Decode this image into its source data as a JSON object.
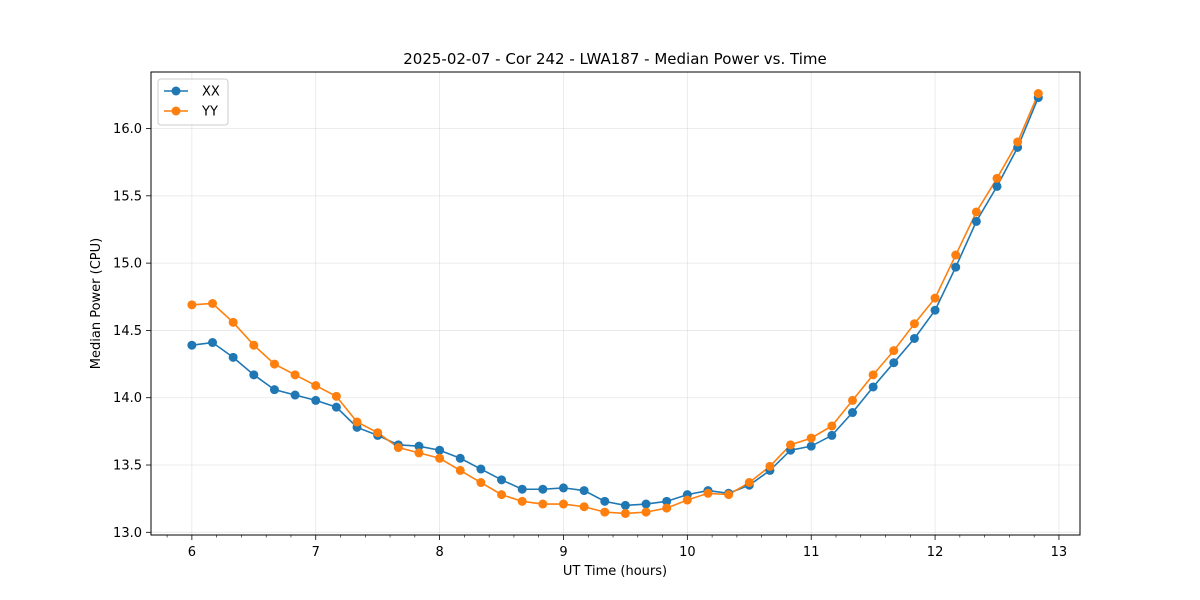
{
  "chart_data": {
    "type": "line",
    "title": "2025-02-07 - Cor 242 - LWA187 - Median Power vs. Time",
    "xlabel": "UT Time (hours)",
    "ylabel": "Median Power (CPU)",
    "xlim": [
      5.67,
      13.17
    ],
    "ylim": [
      12.98,
      16.42
    ],
    "xticks": [
      6,
      7,
      8,
      9,
      10,
      11,
      12,
      13
    ],
    "xtick_labels": [
      "6",
      "7",
      "8",
      "9",
      "10",
      "11",
      "12",
      "13"
    ],
    "yticks": [
      13.0,
      13.5,
      14.0,
      14.5,
      15.0,
      15.5,
      16.0
    ],
    "ytick_labels": [
      "13.0",
      "13.5",
      "14.0",
      "14.5",
      "15.0",
      "15.5",
      "16.0"
    ],
    "grid": true,
    "legend_position": "top-left",
    "x": [
      6.0,
      6.1667,
      6.3333,
      6.5,
      6.6667,
      6.8333,
      7.0,
      7.1667,
      7.3333,
      7.5,
      7.6667,
      7.8333,
      8.0,
      8.1667,
      8.3333,
      8.5,
      8.6667,
      8.8333,
      9.0,
      9.1667,
      9.3333,
      9.5,
      9.6667,
      9.8333,
      10.0,
      10.1667,
      10.3333,
      10.5,
      10.6667,
      10.8333,
      11.0,
      11.1667,
      11.3333,
      11.5,
      11.6667,
      11.8333,
      12.0,
      12.1667,
      12.3333,
      12.5,
      12.6667,
      12.8333
    ],
    "series": [
      {
        "name": "XX",
        "color": "#1f77b4",
        "values": [
          14.39,
          14.41,
          14.3,
          14.17,
          14.06,
          14.02,
          13.98,
          13.93,
          13.78,
          13.72,
          13.65,
          13.64,
          13.61,
          13.55,
          13.47,
          13.39,
          13.32,
          13.32,
          13.33,
          13.31,
          13.23,
          13.2,
          13.21,
          13.23,
          13.28,
          13.31,
          13.29,
          13.35,
          13.46,
          13.61,
          13.64,
          13.72,
          13.89,
          14.08,
          14.26,
          14.44,
          14.65,
          14.97,
          15.31,
          15.57,
          15.86,
          16.23
        ]
      },
      {
        "name": "YY",
        "color": "#ff7f0e",
        "values": [
          14.69,
          14.7,
          14.56,
          14.39,
          14.25,
          14.17,
          14.09,
          14.01,
          13.82,
          13.74,
          13.63,
          13.59,
          13.55,
          13.46,
          13.37,
          13.28,
          13.23,
          13.21,
          13.21,
          13.19,
          13.15,
          13.14,
          13.15,
          13.18,
          13.24,
          13.29,
          13.28,
          13.37,
          13.49,
          13.65,
          13.7,
          13.79,
          13.98,
          14.17,
          14.35,
          14.55,
          14.74,
          15.06,
          15.38,
          15.63,
          15.9,
          16.26
        ]
      }
    ]
  }
}
